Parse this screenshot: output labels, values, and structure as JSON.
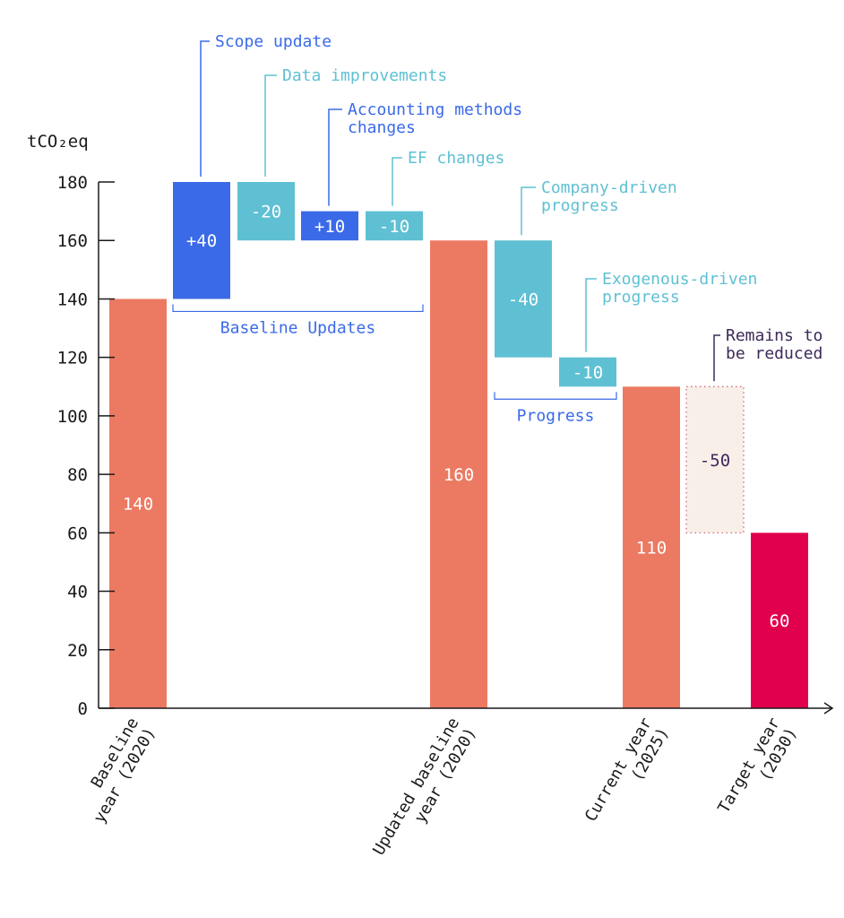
{
  "chart_data": {
    "type": "bar",
    "subtype": "waterfall",
    "title": "",
    "ylabel": "tCO₂eq",
    "xlabel": "",
    "ylim": [
      0,
      180
    ],
    "yticks": [
      0,
      20,
      40,
      60,
      80,
      100,
      120,
      140,
      160,
      180
    ],
    "grid": false,
    "legend": "none",
    "colors": {
      "total": "#ec7a62",
      "increase": "#3a6ae8",
      "decrease": "#5fc0d3",
      "target": "#e0004d",
      "remaining_fill": "#f9efe9",
      "remaining_border": "#c85a6a",
      "remaining_text": "#3d2a5a",
      "axis": "#1a1a1a"
    },
    "bars": [
      {
        "id": "baseline",
        "kind": "total",
        "start": 0,
        "end": 140,
        "label": "140",
        "category": [
          "Baseline",
          "year (2020)"
        ]
      },
      {
        "id": "scope",
        "kind": "increase",
        "start": 140,
        "end": 180,
        "label": "+40",
        "annotation": [
          "Scope update"
        ]
      },
      {
        "id": "data",
        "kind": "decrease",
        "start": 180,
        "end": 160,
        "label": "-20",
        "annotation": [
          "Data improvements"
        ]
      },
      {
        "id": "accounting",
        "kind": "increase",
        "start": 160,
        "end": 170,
        "label": "+10",
        "annotation": [
          "Accounting methods",
          "changes"
        ]
      },
      {
        "id": "ef",
        "kind": "decrease",
        "start": 170,
        "end": 160,
        "label": "-10",
        "annotation": [
          "EF changes"
        ]
      },
      {
        "id": "updated",
        "kind": "total",
        "start": 0,
        "end": 160,
        "label": "160",
        "category": [
          "Updated baseline",
          "year (2020)"
        ]
      },
      {
        "id": "company",
        "kind": "decrease",
        "start": 160,
        "end": 120,
        "label": "-40",
        "annotation": [
          "Company-driven",
          "progress"
        ]
      },
      {
        "id": "exogenous",
        "kind": "decrease",
        "start": 120,
        "end": 110,
        "label": "-10",
        "annotation": [
          "Exogenous-driven",
          "progress"
        ]
      },
      {
        "id": "current",
        "kind": "total",
        "start": 0,
        "end": 110,
        "label": "110",
        "category": [
          "Current year",
          "(2025)"
        ]
      },
      {
        "id": "remaining",
        "kind": "remaining",
        "start": 110,
        "end": 60,
        "label": "-50",
        "annotation": [
          "Remains to",
          "be reduced"
        ]
      },
      {
        "id": "target",
        "kind": "target",
        "start": 0,
        "end": 60,
        "label": "60",
        "category": [
          "Target year",
          "(2030)"
        ]
      }
    ],
    "groups": [
      {
        "label": "Baseline Updates",
        "from": "scope",
        "to": "ef",
        "color": "#3a6ae8"
      },
      {
        "label": "Progress",
        "from": "company",
        "to": "exogenous",
        "color": "#3a6ae8"
      }
    ]
  }
}
